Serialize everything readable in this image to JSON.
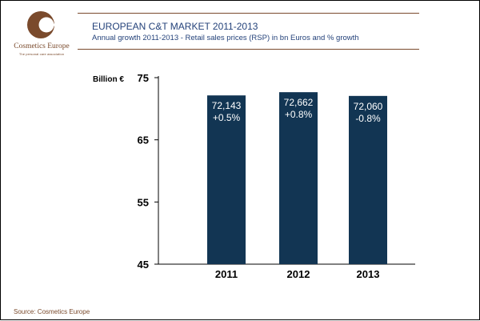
{
  "logo": {
    "name": "Cosmetics Europe",
    "tagline": "The personal care association"
  },
  "header": {
    "title": "EUROPEAN C&T MARKET 2011-2013",
    "subtitle": "Annual growth 2011-2013 - Retail sales prices (RSP) in bn Euros and % growth"
  },
  "source": "Source: Cosmetics Europe",
  "colors": {
    "bar": "#123553",
    "brand": "#7a4a2c",
    "header_text": "#24427a"
  },
  "chart_data": {
    "type": "bar",
    "title": "EUROPEAN C&T MARKET 2011-2013",
    "subtitle": "Annual growth 2011-2013 - Retail sales prices (RSP) in bn Euros and % growth",
    "ylabel": "Billion €",
    "xlabel": "",
    "categories": [
      "2011",
      "2012",
      "2013"
    ],
    "values": [
      72.143,
      72.662,
      72.06
    ],
    "value_labels": [
      "72,143",
      "72,662",
      "72,060"
    ],
    "growth_labels": [
      "+0.5%",
      "+0.8%",
      "-0.8%"
    ],
    "ylim": [
      45,
      75
    ],
    "yticks": [
      "45",
      "55",
      "65",
      "75"
    ],
    "grid": false,
    "legend": "none"
  }
}
